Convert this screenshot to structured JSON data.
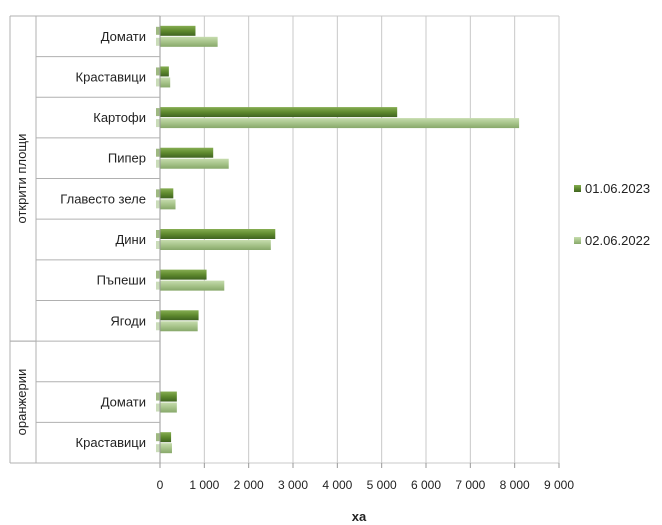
{
  "chart_data": {
    "type": "bar",
    "orientation": "horizontal",
    "xlabel": "ха",
    "xlim": [
      0,
      9000
    ],
    "x_ticks": [
      "0",
      "1 000",
      "2 000",
      "3 000",
      "4 000",
      "5 000",
      "6 000",
      "7 000",
      "8 000",
      "9 000"
    ],
    "grid": true,
    "legend_position": "right",
    "groups": [
      {
        "label": "открити площи",
        "categories": [
          "Домати",
          "Краставици",
          "Картофи",
          "Пипер",
          "Главесто зеле",
          "Дини",
          "Пъпеши",
          "Ягоди"
        ]
      },
      {
        "label": "оранжерии",
        "categories": [
          "",
          "Домати",
          "Краставици"
        ]
      }
    ],
    "series": [
      {
        "name": "01.06.2023",
        "color": "#5f8a2e",
        "values": [
          800,
          200,
          5350,
          1200,
          300,
          2600,
          1050,
          870,
          null,
          380,
          250
        ]
      },
      {
        "name": "02.06.2022",
        "color": "#a7c48a",
        "values": [
          1300,
          230,
          8100,
          1550,
          350,
          2500,
          1450,
          850,
          null,
          380,
          270
        ]
      }
    ]
  }
}
